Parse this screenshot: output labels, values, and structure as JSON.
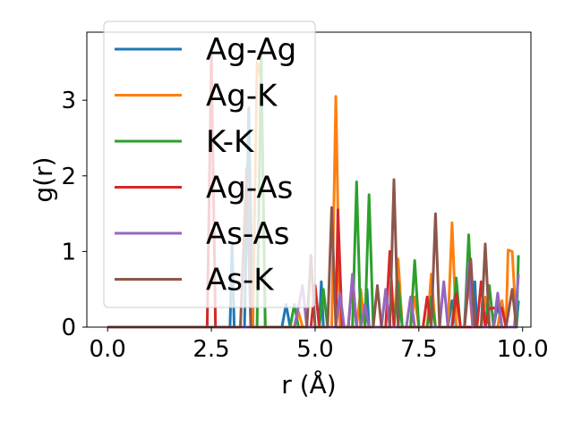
{
  "chart_data": {
    "type": "line",
    "xlabel": "r (Å)",
    "ylabel": "g(r)",
    "xlim": [
      -0.5,
      10.2
    ],
    "ylim": [
      0,
      3.9
    ],
    "xticks": [
      0.0,
      2.5,
      5.0,
      7.5,
      10.0
    ],
    "xtick_labels": [
      "0.0",
      "2.5",
      "5.0",
      "7.5",
      "10.0"
    ],
    "yticks": [
      0,
      1,
      2,
      3
    ],
    "ytick_labels": [
      "0",
      "1",
      "2",
      "3"
    ],
    "grid": false,
    "legend_position": "upper-left",
    "series": [
      {
        "name": "Ag-Ag",
        "color": "#1f77b4",
        "points": [
          [
            0,
            0
          ],
          [
            2.95,
            0
          ],
          [
            3.0,
            1.1
          ],
          [
            3.05,
            0
          ],
          [
            3.3,
            0
          ],
          [
            3.4,
            2.9
          ],
          [
            3.5,
            0
          ],
          [
            4.2,
            0
          ],
          [
            4.3,
            0.3
          ],
          [
            4.4,
            0
          ],
          [
            5.1,
            0
          ],
          [
            5.15,
            0.6
          ],
          [
            5.2,
            0
          ],
          [
            6.2,
            0
          ],
          [
            6.25,
            0.5
          ],
          [
            6.3,
            0
          ],
          [
            7.0,
            0
          ],
          [
            7.05,
            0.4
          ],
          [
            7.1,
            0
          ],
          [
            8.2,
            0
          ],
          [
            8.3,
            0.35
          ],
          [
            8.4,
            0
          ],
          [
            8.8,
            0
          ],
          [
            8.85,
            0.6
          ],
          [
            8.9,
            0
          ],
          [
            9.3,
            0
          ],
          [
            9.4,
            0.3
          ],
          [
            9.5,
            0
          ],
          [
            9.85,
            0
          ],
          [
            9.9,
            0.35
          ]
        ]
      },
      {
        "name": "Ag-K",
        "color": "#ff7f0e",
        "points": [
          [
            0,
            0
          ],
          [
            3.5,
            0
          ],
          [
            3.6,
            3.5
          ],
          [
            3.7,
            3.3
          ],
          [
            3.8,
            0
          ],
          [
            4.5,
            0
          ],
          [
            4.6,
            0.2
          ],
          [
            4.7,
            0
          ],
          [
            5.4,
            0
          ],
          [
            5.5,
            3.05
          ],
          [
            5.6,
            0
          ],
          [
            6.0,
            0
          ],
          [
            6.1,
            0.5
          ],
          [
            6.2,
            0
          ],
          [
            6.9,
            0
          ],
          [
            7.0,
            0.9
          ],
          [
            7.1,
            0
          ],
          [
            7.3,
            0
          ],
          [
            7.4,
            0.4
          ],
          [
            7.5,
            0
          ],
          [
            7.7,
            0
          ],
          [
            7.8,
            0.7
          ],
          [
            7.9,
            0
          ],
          [
            8.2,
            0
          ],
          [
            8.3,
            1.38
          ],
          [
            8.4,
            0
          ],
          [
            8.6,
            0
          ],
          [
            8.7,
            0.6
          ],
          [
            8.8,
            0
          ],
          [
            9.0,
            0
          ],
          [
            9.1,
            0.4
          ],
          [
            9.2,
            0
          ],
          [
            9.4,
            0
          ],
          [
            9.5,
            0.35
          ],
          [
            9.6,
            0
          ],
          [
            9.65,
            1.02
          ],
          [
            9.75,
            1.0
          ],
          [
            9.85,
            0
          ]
        ]
      },
      {
        "name": "K-K",
        "color": "#2ca02c",
        "points": [
          [
            0,
            0
          ],
          [
            3.6,
            0
          ],
          [
            3.7,
            3.6
          ],
          [
            3.8,
            0
          ],
          [
            4.4,
            0
          ],
          [
            4.5,
            0.3
          ],
          [
            4.6,
            0
          ],
          [
            5.1,
            0
          ],
          [
            5.2,
            0.5
          ],
          [
            5.3,
            0
          ],
          [
            5.9,
            0
          ],
          [
            6.0,
            1.92
          ],
          [
            6.1,
            0
          ],
          [
            6.2,
            0
          ],
          [
            6.3,
            1.75
          ],
          [
            6.4,
            0
          ],
          [
            6.9,
            0
          ],
          [
            7.0,
            0.6
          ],
          [
            7.1,
            0
          ],
          [
            7.3,
            0
          ],
          [
            7.4,
            0.88
          ],
          [
            7.5,
            0
          ],
          [
            7.7,
            0
          ],
          [
            7.8,
            0.4
          ],
          [
            7.9,
            0
          ],
          [
            8.3,
            0
          ],
          [
            8.4,
            0.65
          ],
          [
            8.5,
            0
          ],
          [
            8.6,
            0
          ],
          [
            8.7,
            1.22
          ],
          [
            8.8,
            0
          ],
          [
            9.1,
            0
          ],
          [
            9.2,
            0.55
          ],
          [
            9.3,
            0
          ],
          [
            9.85,
            0
          ],
          [
            9.9,
            0.95
          ]
        ]
      },
      {
        "name": "Ag-As",
        "color": "#d62728",
        "points": [
          [
            0,
            0
          ],
          [
            2.4,
            0
          ],
          [
            2.5,
            3.6
          ],
          [
            2.6,
            0
          ],
          [
            4.9,
            0
          ],
          [
            5.0,
            0.55
          ],
          [
            5.1,
            0
          ],
          [
            5.5,
            0
          ],
          [
            5.55,
            1.55
          ],
          [
            5.65,
            0
          ],
          [
            5.8,
            0
          ],
          [
            5.9,
            0.65
          ],
          [
            6.0,
            0
          ],
          [
            6.7,
            0
          ],
          [
            6.8,
            1.0
          ],
          [
            6.9,
            0
          ],
          [
            7.6,
            0
          ],
          [
            7.7,
            0.4
          ],
          [
            7.8,
            0
          ],
          [
            8.3,
            0
          ],
          [
            8.4,
            0.45
          ],
          [
            8.5,
            0
          ],
          [
            8.9,
            0
          ],
          [
            9.0,
            0.6
          ],
          [
            9.1,
            0
          ],
          [
            9.2,
            0.25
          ],
          [
            9.5,
            0.25
          ],
          [
            9.6,
            0
          ]
        ]
      },
      {
        "name": "As-As",
        "color": "#9467bd",
        "points": [
          [
            0,
            0
          ],
          [
            4.5,
            0
          ],
          [
            4.7,
            0.55
          ],
          [
            4.8,
            0
          ],
          [
            5.5,
            0
          ],
          [
            5.6,
            0.45
          ],
          [
            5.7,
            0
          ],
          [
            5.8,
            0
          ],
          [
            5.9,
            0.7
          ],
          [
            6.0,
            0
          ],
          [
            6.1,
            0
          ],
          [
            6.2,
            0.3
          ],
          [
            6.3,
            0
          ],
          [
            6.6,
            0
          ],
          [
            6.7,
            0.5
          ],
          [
            6.8,
            0
          ],
          [
            7.2,
            0
          ],
          [
            7.3,
            0.4
          ],
          [
            7.4,
            0
          ],
          [
            8.0,
            0
          ],
          [
            8.1,
            0.6
          ],
          [
            8.2,
            0
          ],
          [
            8.6,
            0
          ],
          [
            8.7,
            0.85
          ],
          [
            8.8,
            0
          ],
          [
            9.3,
            0
          ],
          [
            9.4,
            0.45
          ],
          [
            9.5,
            0
          ],
          [
            9.8,
            0
          ],
          [
            9.9,
            0.7
          ]
        ]
      },
      {
        "name": "As-K",
        "color": "#8c564b",
        "points": [
          [
            0,
            0
          ],
          [
            3.2,
            0
          ],
          [
            3.35,
            2.1
          ],
          [
            3.45,
            0
          ],
          [
            4.8,
            0
          ],
          [
            4.9,
            0.95
          ],
          [
            5.0,
            0
          ],
          [
            5.3,
            0
          ],
          [
            5.4,
            1.58
          ],
          [
            5.5,
            0
          ],
          [
            6.4,
            0
          ],
          [
            6.5,
            0.55
          ],
          [
            6.6,
            0
          ],
          [
            6.8,
            0
          ],
          [
            6.9,
            1.95
          ],
          [
            7.0,
            0
          ],
          [
            7.8,
            0
          ],
          [
            7.9,
            1.5
          ],
          [
            8.0,
            0
          ],
          [
            8.6,
            0
          ],
          [
            8.75,
            0.9
          ],
          [
            8.85,
            0
          ],
          [
            9.0,
            0
          ],
          [
            9.1,
            1.1
          ],
          [
            9.2,
            0
          ],
          [
            9.6,
            0
          ],
          [
            9.75,
            0.5
          ],
          [
            9.85,
            0
          ]
        ]
      }
    ]
  }
}
